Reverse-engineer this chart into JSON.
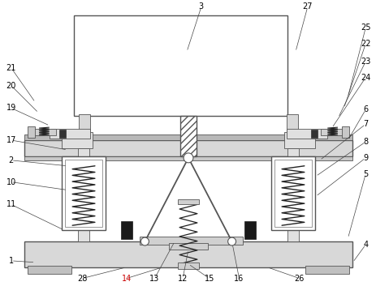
{
  "background": "#ffffff",
  "line_color": "#555555",
  "label_color": "#000000",
  "red_label_color": "#cc0000",
  "fig_width": 4.64,
  "fig_height": 3.53,
  "dpi": 100
}
